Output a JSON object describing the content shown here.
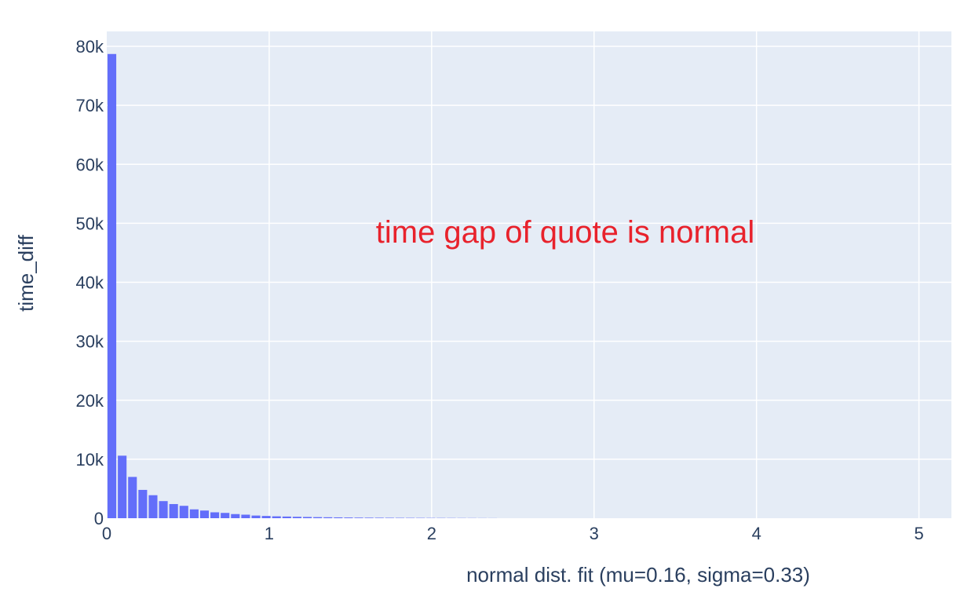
{
  "chart_data": {
    "type": "bar",
    "title": "",
    "xlabel": "normal dist. fit (mu=0.16, sigma=0.33)",
    "ylabel": "time_diff",
    "annotation": "time gap of quote is normal",
    "x_ticks": [
      0,
      1,
      2,
      3,
      4,
      5
    ],
    "x_tick_labels": [
      "0",
      "1",
      "2",
      "3",
      "4",
      "5"
    ],
    "y_ticks": [
      0,
      10000,
      20000,
      30000,
      40000,
      50000,
      60000,
      70000,
      80000
    ],
    "y_tick_labels": [
      "0",
      "10k",
      "20k",
      "30k",
      "40k",
      "50k",
      "60k",
      "70k",
      "80k"
    ],
    "xlim": [
      0,
      5.2
    ],
    "ylim": [
      0,
      80000
    ],
    "grid": true,
    "bin_width": 0.0633,
    "x": [
      0.0316,
      0.095,
      0.1583,
      0.2216,
      0.285,
      0.3483,
      0.4116,
      0.475,
      0.5383,
      0.6016,
      0.665,
      0.7283,
      0.7916,
      0.855,
      0.9183,
      0.9816,
      1.045,
      1.1083,
      1.1716,
      1.235,
      1.2983,
      1.3616,
      1.425,
      1.4883,
      1.5516,
      1.615,
      1.6783,
      1.7416,
      1.805,
      1.8683,
      1.9316,
      1.995,
      2.0583,
      2.1216,
      2.185,
      2.2483,
      2.3116,
      2.375
    ],
    "values": [
      78700,
      10600,
      7000,
      4800,
      3900,
      2900,
      2400,
      2100,
      1500,
      1300,
      1000,
      900,
      700,
      600,
      450,
      380,
      320,
      280,
      240,
      210,
      180,
      160,
      140,
      120,
      100,
      90,
      80,
      70,
      60,
      55,
      50,
      45,
      40,
      35,
      30,
      25,
      20,
      15
    ],
    "colors": {
      "bar": "#636efa",
      "plot_bg": "#e5ecf6",
      "grid": "#ffffff",
      "text": "#2a3f5f",
      "annotation": "#e8222c"
    }
  }
}
